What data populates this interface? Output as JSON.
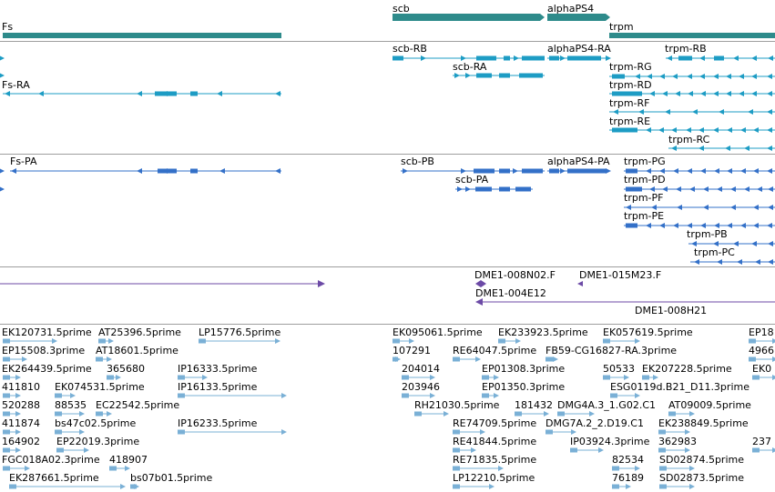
{
  "colors": {
    "gene": "#2e8b8b",
    "transcript_ra": "#1d9cc4",
    "transcript_pa": "#3370c8",
    "clone": "#6c4aa6",
    "est": "#7ab0d6",
    "divider": "#9e9e9e"
  },
  "tracks": {
    "genes": [
      {
        "label": "Fs"
      },
      {
        "label": "scb"
      },
      {
        "label": "alphaPS4"
      },
      {
        "label": "trpm"
      }
    ],
    "transcripts": [
      {
        "label": "scb-RB"
      },
      {
        "label": "alphaPS4-RA"
      },
      {
        "label": "trpm-RB"
      },
      {
        "label": "scb-RA"
      },
      {
        "label": "trpm-RG"
      },
      {
        "label": "Fs-RA"
      },
      {
        "label": "trpm-RD"
      },
      {
        "label": "trpm-RF"
      },
      {
        "label": "trpm-RE"
      },
      {
        "label": "trpm-RC"
      }
    ],
    "proteins": [
      {
        "label": "Fs-PA"
      },
      {
        "label": "scb-PB"
      },
      {
        "label": "alphaPS4-PA"
      },
      {
        "label": "trpm-PG"
      },
      {
        "label": "scb-PA"
      },
      {
        "label": "trpm-PD"
      },
      {
        "label": "trpm-PF"
      },
      {
        "label": "trpm-PE"
      },
      {
        "label": "trpm-PB"
      },
      {
        "label": "trpm-PC"
      }
    ],
    "clones": [
      {
        "label": "DME1-008N02.F"
      },
      {
        "label": "DME1-015M23.F"
      },
      {
        "label": "DME1-004E12"
      },
      {
        "label": "DME1-008H21"
      }
    ],
    "ests": [
      {
        "label": "EK120731.5prime"
      },
      {
        "label": "AT25396.5prime"
      },
      {
        "label": "LP15776.5prime"
      },
      {
        "label": "EK095061.5prime"
      },
      {
        "label": "EK233923.5prime"
      },
      {
        "label": "EK057619.5prime"
      },
      {
        "label": "EP18"
      },
      {
        "label": "EP15508.3prime"
      },
      {
        "label": "AT18601.5prime"
      },
      {
        "label": "107291"
      },
      {
        "label": "RE64047.5prime"
      },
      {
        "label": "FB59-CG16827-RA.3prime"
      },
      {
        "label": "4966"
      },
      {
        "label": "EK264439.5prime"
      },
      {
        "label": "365680"
      },
      {
        "label": "IP16333.5prime"
      },
      {
        "label": "204014"
      },
      {
        "label": "EP01308.3prime"
      },
      {
        "label": "50533"
      },
      {
        "label": "EK207228.5prime"
      },
      {
        "label": "EK0"
      },
      {
        "label": "411810"
      },
      {
        "label": "EK074531.5prime"
      },
      {
        "label": "IP16133.5prime"
      },
      {
        "label": "203946"
      },
      {
        "label": "EP01350.3prime"
      },
      {
        "label": "ESG0119d.B21_D11.3prime"
      },
      {
        "label": "520288"
      },
      {
        "label": "88535"
      },
      {
        "label": "EC22542.5prime"
      },
      {
        "label": "RH21030.5prime"
      },
      {
        "label": "181432"
      },
      {
        "label": "DMG4A.3_1.G02.C1"
      },
      {
        "label": "AT09009.5prime"
      },
      {
        "label": "411874"
      },
      {
        "label": "bs47c02.5prime"
      },
      {
        "label": "IP16233.5prime"
      },
      {
        "label": "RE74709.5prime"
      },
      {
        "label": "DMG7A.2_2.D19.C1"
      },
      {
        "label": "EK238849.5prime"
      },
      {
        "label": "164902"
      },
      {
        "label": "EP22019.3prime"
      },
      {
        "label": "RE41844.5prime"
      },
      {
        "label": "IP03924.3prime"
      },
      {
        "label": "362983"
      },
      {
        "label": "237"
      },
      {
        "label": "FGC018A02.3prime"
      },
      {
        "label": "418907"
      },
      {
        "label": "RE71835.5prime"
      },
      {
        "label": "82534"
      },
      {
        "label": "SD02874.5prime"
      },
      {
        "label": "EK287661.5prime"
      },
      {
        "label": "bs07b01.5prime"
      },
      {
        "label": "LP12210.5prime"
      },
      {
        "label": "76189"
      },
      {
        "label": "SD02873.5prime"
      }
    ]
  }
}
